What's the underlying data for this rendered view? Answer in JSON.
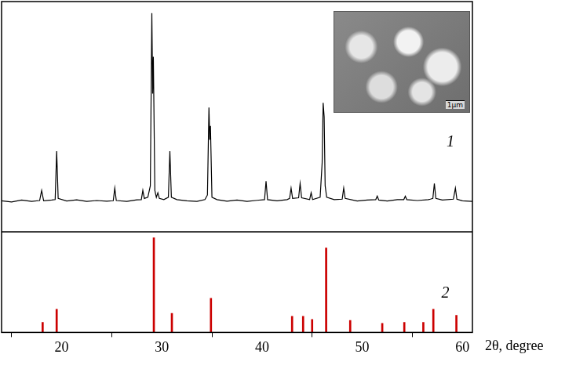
{
  "chart_data": [
    {
      "type": "line",
      "xlim": [
        14,
        61
      ],
      "ylim": [
        0,
        100
      ],
      "tick_labels": false,
      "grid": false,
      "color": "#000000",
      "x": [
        14.0,
        15.0,
        16.0,
        17.0,
        17.8,
        18.0,
        18.2,
        19.0,
        19.35,
        19.5,
        19.65,
        20.5,
        21.5,
        22.5,
        23.5,
        24.5,
        25.15,
        25.3,
        25.45,
        26.5,
        27.5,
        27.95,
        28.1,
        28.25,
        28.6,
        28.85,
        29.0,
        29.08,
        29.15,
        29.3,
        29.45,
        29.6,
        29.75,
        30.2,
        30.65,
        30.8,
        30.95,
        31.5,
        32.5,
        33.5,
        34.3,
        34.55,
        34.7,
        34.78,
        34.85,
        35.0,
        35.5,
        36.5,
        37.5,
        38.5,
        39.5,
        40.25,
        40.4,
        40.55,
        41.5,
        42.5,
        42.75,
        42.9,
        43.05,
        43.65,
        43.8,
        43.95,
        44.75,
        44.9,
        45.05,
        45.8,
        46.0,
        46.1,
        46.2,
        46.3,
        46.45,
        47.2,
        48.0,
        48.15,
        48.3,
        49.5,
        50.5,
        51.35,
        51.5,
        51.65,
        52.5,
        53.5,
        54.15,
        54.3,
        54.45,
        55.5,
        56.6,
        56.8,
        57.05,
        57.2,
        57.35,
        58.0,
        59.1,
        59.3,
        59.45,
        60.0,
        61.0
      ],
      "values": [
        13.5,
        13,
        13.8,
        13.2,
        13.6,
        18,
        13.5,
        13.8,
        14,
        35,
        14.5,
        13.4,
        13.9,
        13.2,
        13.6,
        13.3,
        13.5,
        19,
        13.6,
        13.2,
        13.9,
        14,
        18,
        14.5,
        15,
        20,
        95,
        60,
        76,
        18,
        15,
        17,
        14.5,
        14,
        15,
        35,
        15,
        14,
        13.5,
        13.2,
        14,
        16,
        54,
        40,
        46,
        15,
        14,
        13.3,
        13.8,
        13.2,
        13.7,
        14,
        22,
        14,
        13.5,
        14,
        14.5,
        19,
        14.5,
        14.8,
        21,
        14.8,
        14,
        17,
        14,
        15,
        30,
        56,
        50,
        20,
        15,
        14,
        14.2,
        19,
        14.5,
        13.4,
        13.8,
        14,
        15.5,
        13.8,
        13.4,
        14,
        14,
        15.5,
        14,
        13.6,
        14,
        14.2,
        14.5,
        21,
        14.5,
        13.8,
        14.2,
        19,
        14.2,
        13.5,
        13.2
      ],
      "annotations": [
        {
          "text": "1",
          "x": 58.8,
          "y": 39
        }
      ],
      "inset_label": "1μm"
    },
    {
      "type": "bar",
      "xlim": [
        14,
        61
      ],
      "ylim": [
        0,
        100
      ],
      "xticks": [
        20,
        30,
        40,
        50,
        60
      ],
      "x_label": "2θ, degree",
      "tick_labels": "x",
      "grid": false,
      "color": "#cc0000",
      "x": [
        18.1,
        19.5,
        29.2,
        31.0,
        34.9,
        43.0,
        44.1,
        45.0,
        46.4,
        48.8,
        52.0,
        54.2,
        56.1,
        57.1,
        59.4
      ],
      "values": [
        10,
        23,
        94,
        19,
        34,
        16,
        16,
        13,
        84,
        12,
        9,
        10,
        10,
        23,
        17
      ],
      "annotations": [
        {
          "text": "2",
          "x": 58.3,
          "y": 39
        }
      ]
    }
  ]
}
